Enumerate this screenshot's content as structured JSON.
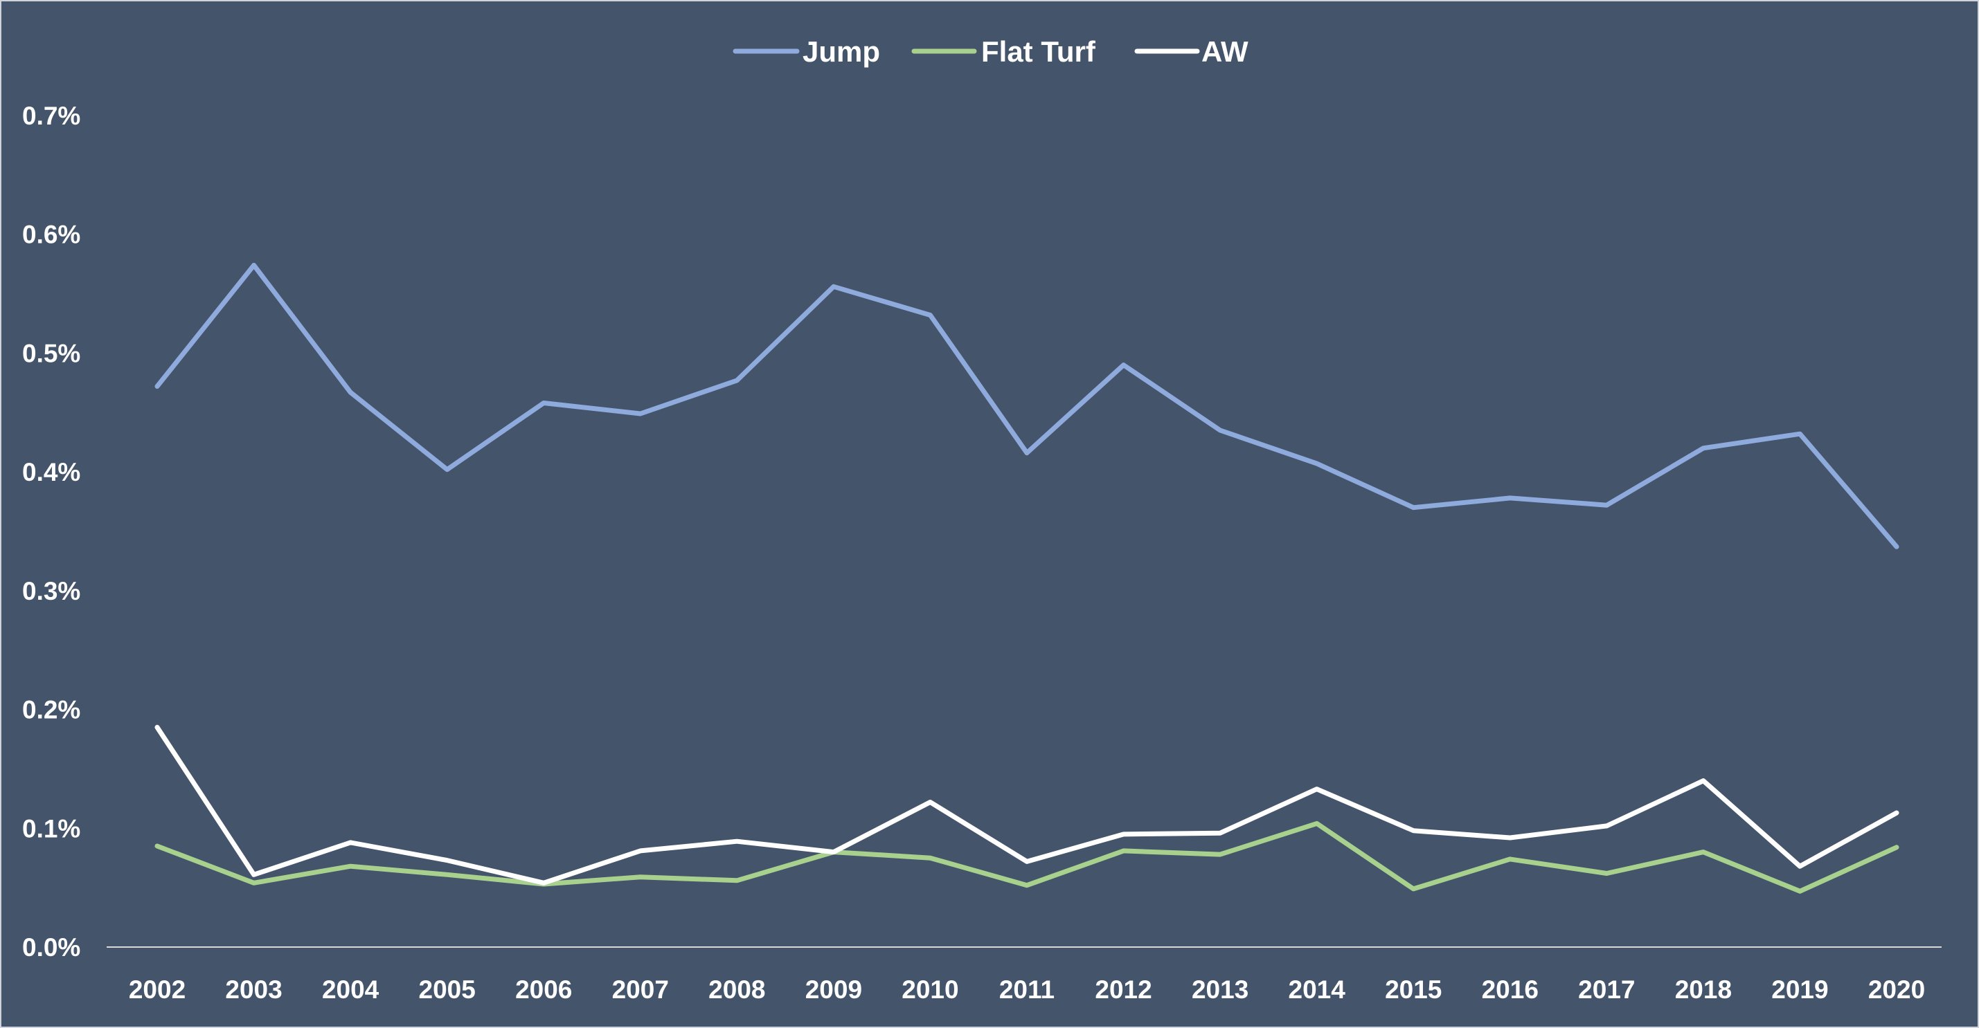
{
  "chart_data": {
    "type": "line",
    "title": "",
    "xlabel": "",
    "ylabel": "",
    "categories": [
      "2002",
      "2003",
      "2004",
      "2005",
      "2006",
      "2007",
      "2008",
      "2009",
      "2010",
      "2011",
      "2012",
      "2013",
      "2014",
      "2015",
      "2016",
      "2017",
      "2018",
      "2019",
      "2020"
    ],
    "ylim": [
      0,
      0.7
    ],
    "y_ticks": [
      0.0,
      0.1,
      0.2,
      0.3,
      0.4,
      0.5,
      0.6,
      0.7
    ],
    "y_tick_labels": [
      "0.0%",
      "0.1%",
      "0.2%",
      "0.3%",
      "0.4%",
      "0.5%",
      "0.6%",
      "0.7%"
    ],
    "grid": false,
    "legend_position": "top-center",
    "series": [
      {
        "name": "Jump",
        "color": "#8faadc",
        "values": [
          0.472,
          0.574,
          0.467,
          0.402,
          0.458,
          0.449,
          0.477,
          0.556,
          0.532,
          0.416,
          0.49,
          0.435,
          0.407,
          0.37,
          0.378,
          0.372,
          0.42,
          0.432,
          0.337
        ]
      },
      {
        "name": "Flat Turf",
        "color": "#a9d18e",
        "values": [
          0.085,
          0.054,
          0.068,
          0.061,
          0.053,
          0.059,
          0.056,
          0.08,
          0.075,
          0.052,
          0.081,
          0.078,
          0.104,
          0.049,
          0.074,
          0.062,
          0.08,
          0.047,
          0.084
        ]
      },
      {
        "name": "AW",
        "color": "#ffffff",
        "values": [
          0.185,
          0.061,
          0.088,
          0.073,
          0.054,
          0.081,
          0.089,
          0.08,
          0.122,
          0.072,
          0.095,
          0.096,
          0.133,
          0.098,
          0.092,
          0.102,
          0.14,
          0.068,
          0.113
        ]
      }
    ]
  }
}
